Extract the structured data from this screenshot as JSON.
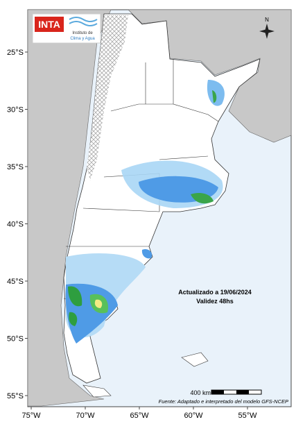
{
  "header": {
    "logo": "INTA",
    "institute_line1": "Instituto de",
    "institute_line2": "Clima y Agua"
  },
  "map": {
    "latitude_labels": [
      "25°S",
      "30°S",
      "35°S",
      "40°S",
      "45°S",
      "50°S",
      "55°S"
    ],
    "longitude_labels": [
      "75°W",
      "70°W",
      "65°W",
      "60°W",
      "55°W"
    ],
    "compass": "N",
    "updated": "Actualizado a 19/06/2024",
    "validity": "Validez 48hs",
    "scale": "400 km",
    "source": "Fuente: Adaptado e interpretado del modelo GFS-NCEP"
  }
}
